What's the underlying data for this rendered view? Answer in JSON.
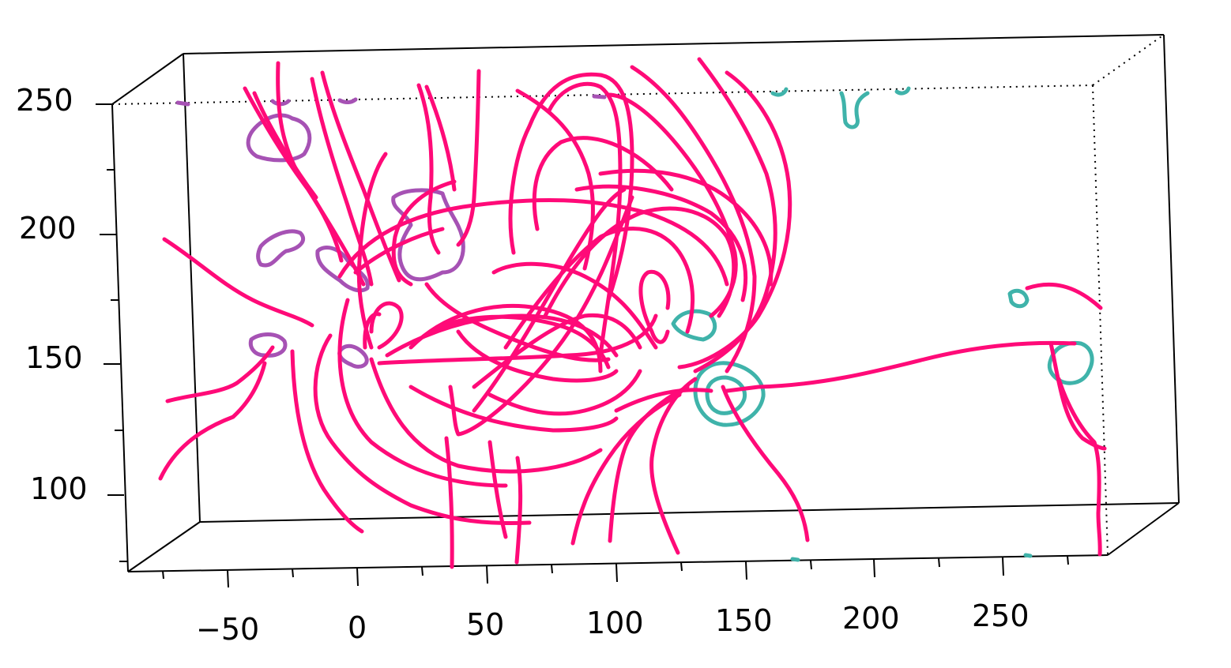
{
  "figure": {
    "y_axis_ticks": [
      "250",
      "200",
      "150",
      "100"
    ],
    "x_axis_ticks": [
      "−50",
      "0",
      "50",
      "100",
      "150",
      "200",
      "250"
    ],
    "colors": {
      "field_lines": "#ff0a78",
      "negative_polarity_contours": "#a652b4",
      "positive_polarity_contours": "#3fb3aa",
      "frame": "#000000"
    }
  }
}
